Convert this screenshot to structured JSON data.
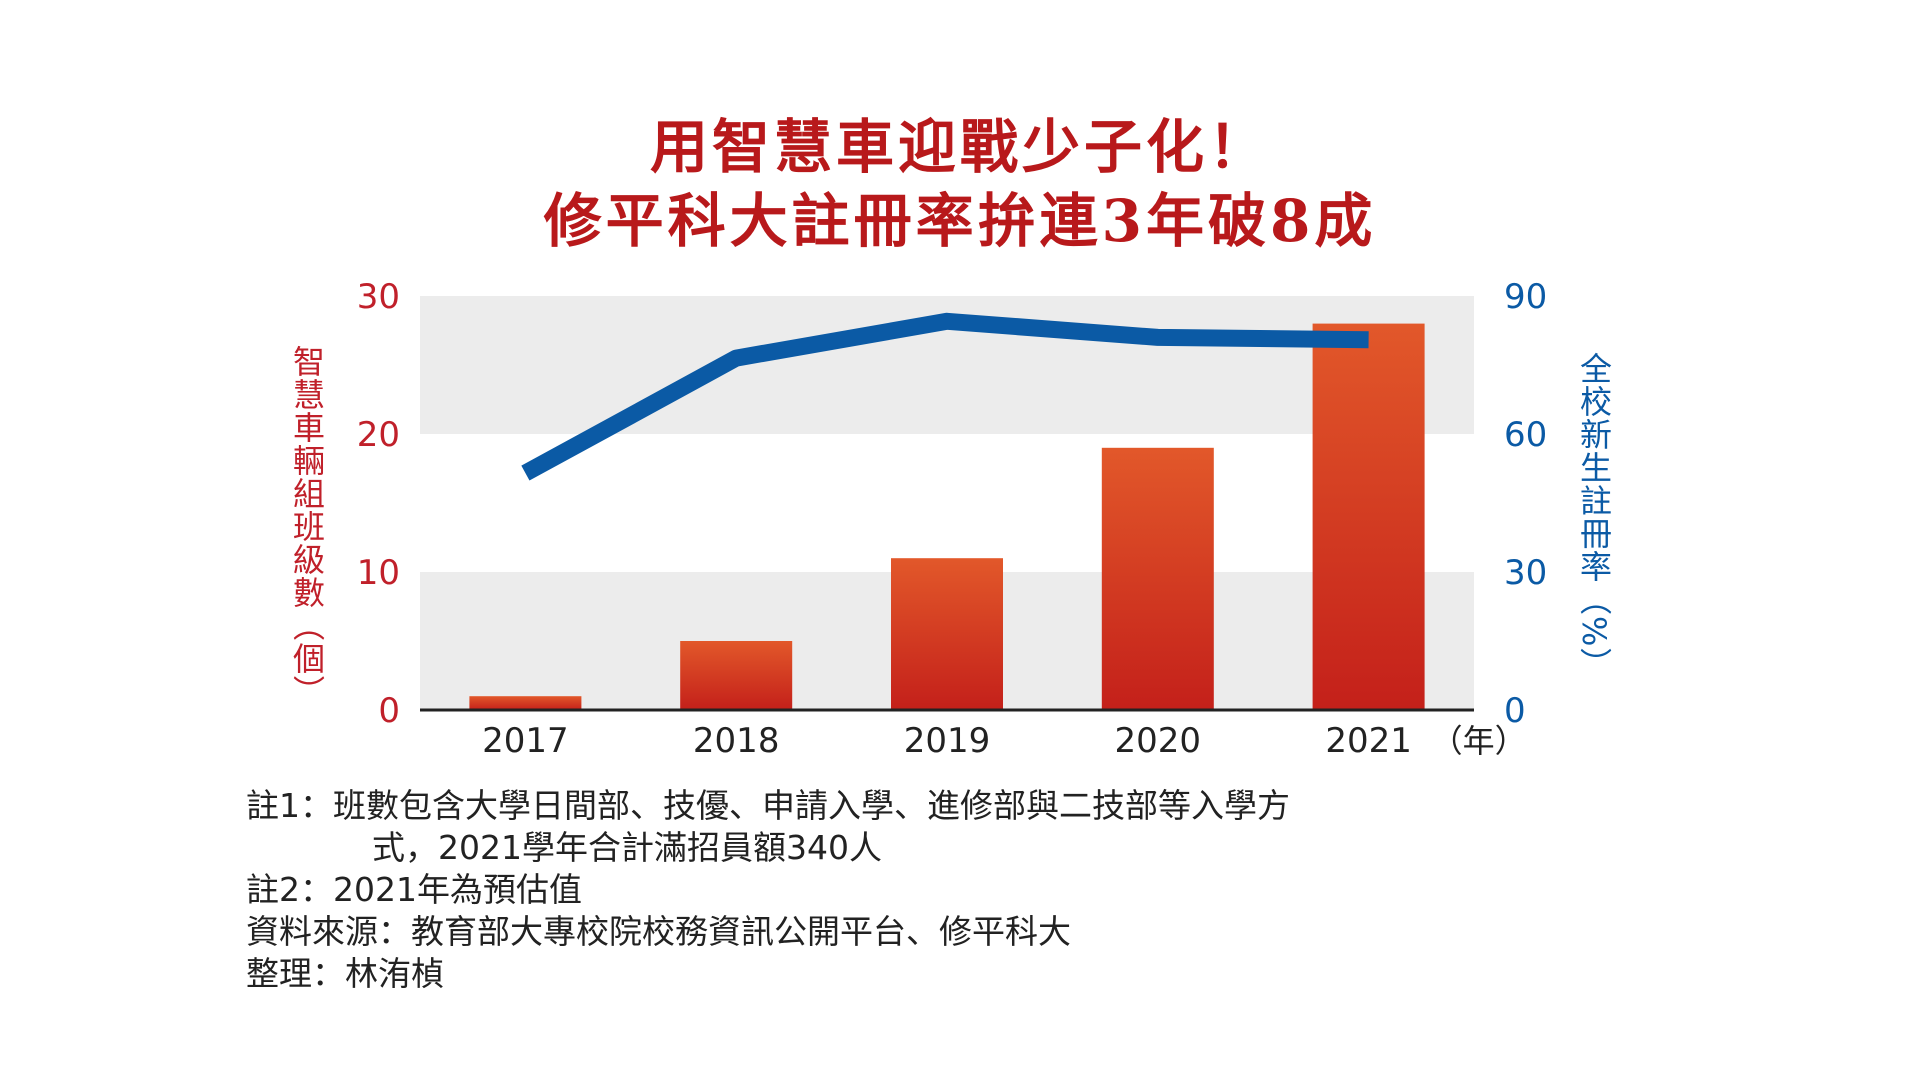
{
  "title": [
    "用智慧車迎戰少子化！",
    "修平科大註冊率拚連3年破8成"
  ],
  "chart_data": {
    "type": "bar",
    "categories": [
      "2017",
      "2018",
      "2019",
      "2020",
      "2021"
    ],
    "x_unit": "（年）",
    "series": [
      {
        "axis": "left",
        "type": "bar",
        "values": [
          1,
          5,
          11,
          19,
          28
        ],
        "color": "#d6311c"
      },
      {
        "axis": "right",
        "type": "line",
        "values": [
          51.5,
          76.5,
          84.5,
          81,
          80.5
        ],
        "color": "#0b5aa5"
      }
    ],
    "y_left": {
      "label": "智慧車輛組班級數（個）",
      "lim": [
        0,
        30
      ],
      "ticks": [
        0,
        10,
        20,
        30
      ],
      "color": "#c0202a"
    },
    "y_right": {
      "label": "全校新生註冊率（%）",
      "lim": [
        0,
        90
      ],
      "ticks": [
        0,
        30,
        60,
        90
      ],
      "color": "#0b5aa5"
    },
    "band_color": "#ececec"
  },
  "notes": {
    "note1_line1": "註1：班數包含大學日間部、技優、申請入學、進修部與二技部等入學方",
    "note1_line2": "式，2021學年合計滿招員額340人",
    "note2": "註2：2021年為預估值",
    "source": "資料來源：教育部大專校院校務資訊公開平台、修平科大",
    "editor": "整理：林洧楨"
  }
}
